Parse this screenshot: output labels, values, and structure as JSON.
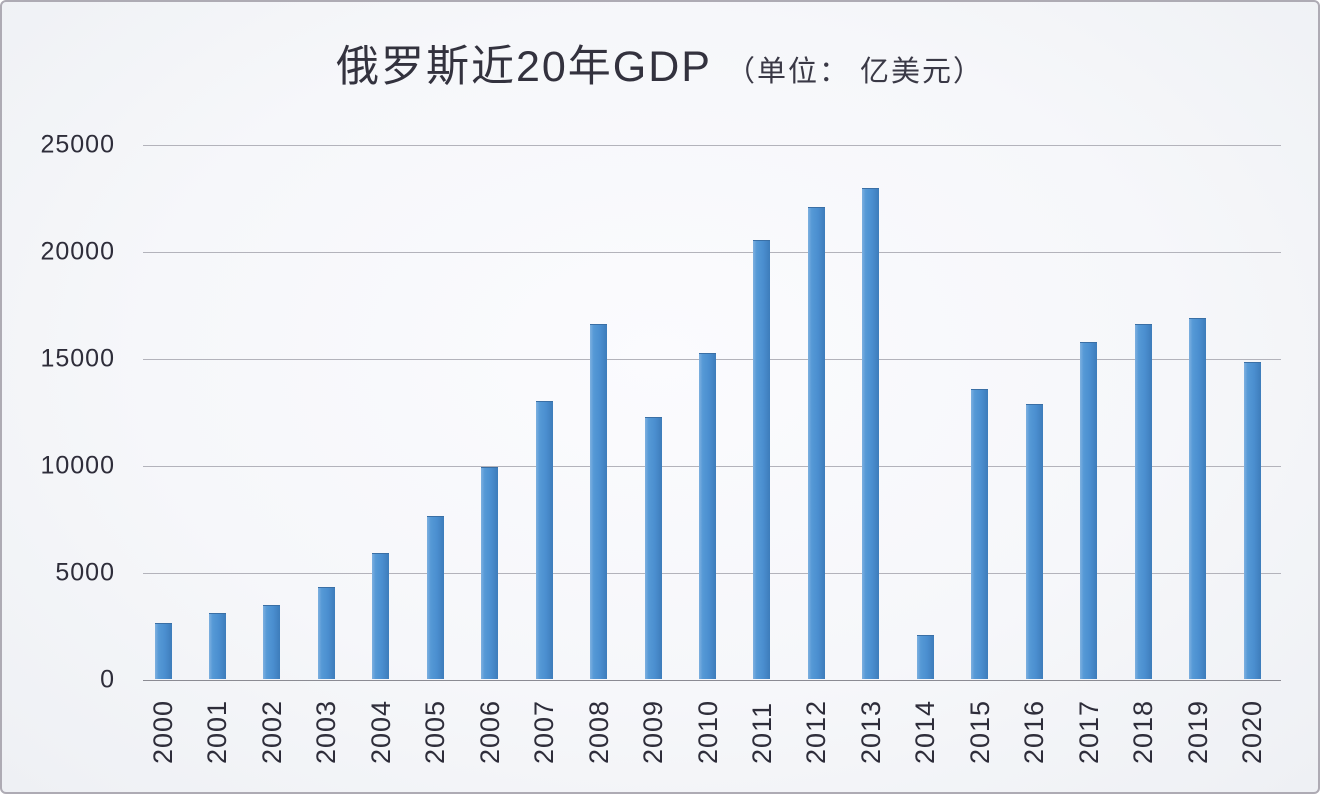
{
  "title": {
    "main": "俄罗斯近20年GDP",
    "unit": "（单位： 亿美元）"
  },
  "colors": {
    "bar": "#4e92d2",
    "bar_edge_light": "#7eb0e0",
    "bar_edge_dark": "#3d7cba",
    "gridline": "#b3b3bb",
    "axis_line": "#8b8b93",
    "text": "#2c2b38",
    "background": "#f7f8fb",
    "frame_border": "#aeabb4"
  },
  "chart_data": {
    "type": "bar",
    "title": "俄罗斯近20年GDP（单位：亿美元）",
    "xlabel": "",
    "ylabel": "",
    "categories": [
      "2000",
      "2001",
      "2002",
      "2003",
      "2004",
      "2005",
      "2006",
      "2007",
      "2008",
      "2009",
      "2010",
      "2011",
      "2012",
      "2013",
      "2014",
      "2015",
      "2016",
      "2017",
      "2018",
      "2019",
      "2020"
    ],
    "values": [
      2597,
      3067,
      3453,
      4304,
      5910,
      7640,
      9899,
      12997,
      16608,
      12231,
      15250,
      20517,
      22080,
      22922,
      2064,
      13563,
      12828,
      15741,
      16570,
      16870,
      14835
    ],
    "ylim": [
      0,
      25000
    ],
    "yticks": [
      0,
      5000,
      10000,
      15000,
      20000,
      25000
    ],
    "grid": true,
    "legend": "none",
    "bar_orientation": "vertical",
    "x_tick_rotation_deg": 90
  }
}
